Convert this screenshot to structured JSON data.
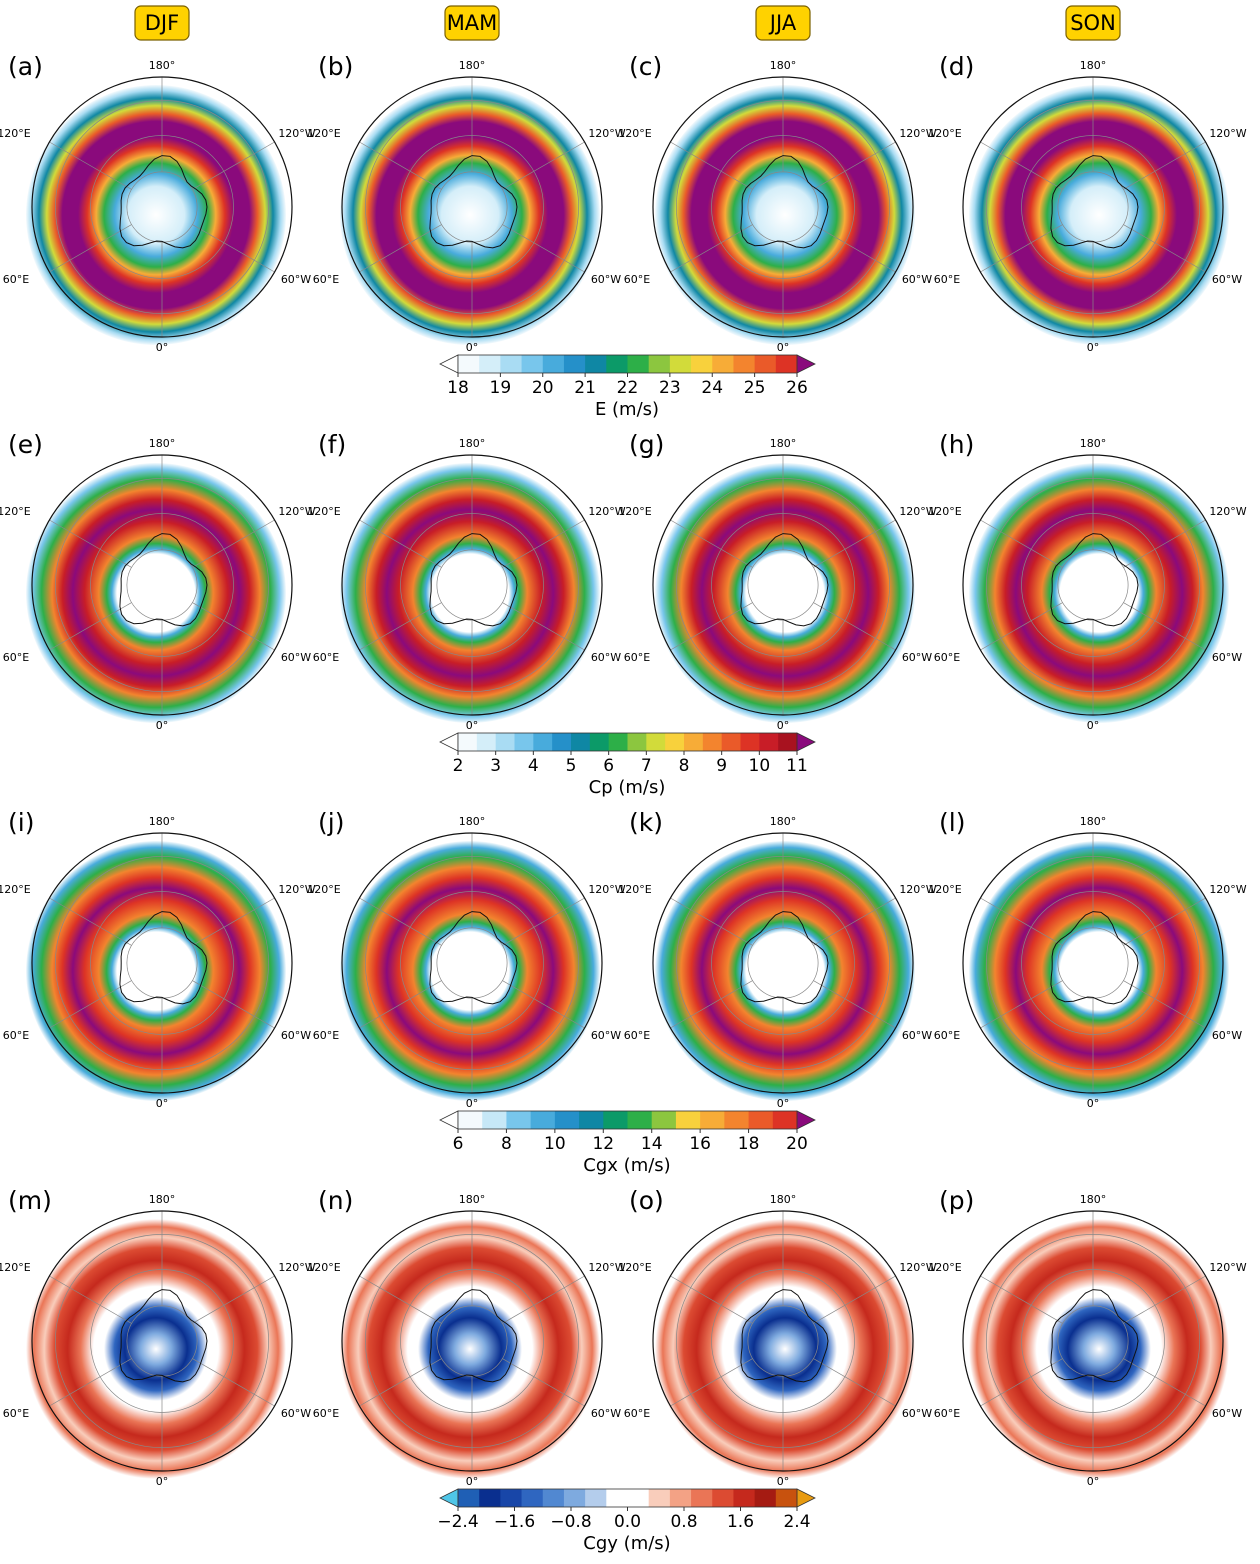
{
  "seasons": [
    "DJF",
    "MAM",
    "JJA",
    "SON"
  ],
  "panel_labels": [
    "(a)",
    "(b)",
    "(c)",
    "(d)",
    "(e)",
    "(f)",
    "(g)",
    "(h)",
    "(i)",
    "(j)",
    "(k)",
    "(l)",
    "(m)",
    "(n)",
    "(o)",
    "(p)"
  ],
  "longitude_labels": {
    "top": "180°",
    "upper_left": "120°E",
    "upper_right": "120°W",
    "lower_left": "60°E",
    "lower_right": "60°W",
    "bottom": "0°"
  },
  "rows": [
    {
      "colorbar": {
        "label": "E (m/s)",
        "lim": [
          18,
          26
        ],
        "ticks": [
          18,
          19,
          20,
          21,
          22,
          23,
          24,
          25,
          26
        ],
        "under": "#ffffff",
        "over": "#8a0a7c",
        "colors": [
          "#f4fafd",
          "#d4eef9",
          "#a9dcf3",
          "#78c6ec",
          "#48abdc",
          "#2590c9",
          "#0f87a4",
          "#0c9a68",
          "#2daf48",
          "#8cc63f",
          "#d2db3a",
          "#f8d13c",
          "#f7ac37",
          "#f3842e",
          "#ea5a29",
          "#dd3325"
        ]
      }
    },
    {
      "colorbar": {
        "label": "Cp (m/s)",
        "lim": [
          2,
          11
        ],
        "ticks": [
          2,
          3,
          4,
          5,
          6,
          7,
          8,
          9,
          10,
          11
        ],
        "under": "#ffffff",
        "over": "#8a0a7c",
        "colors": [
          "#f4fafd",
          "#d4eef9",
          "#a9dcf3",
          "#78c6ec",
          "#48abdc",
          "#2590c9",
          "#0f87a4",
          "#0c9a68",
          "#2daf48",
          "#8cc63f",
          "#d2db3a",
          "#f8d13c",
          "#f7ac37",
          "#f3842e",
          "#ea5a29",
          "#dd3325",
          "#c81d27",
          "#a8121f"
        ]
      }
    },
    {
      "colorbar": {
        "label": "Cgx (m/s)",
        "lim": [
          6,
          20
        ],
        "ticks": [
          6,
          8,
          10,
          12,
          14,
          16,
          18,
          20
        ],
        "under": "#ffffff",
        "over": "#8a0a7c",
        "colors": [
          "#f4fafd",
          "#c6e8f7",
          "#78c6ec",
          "#48abdc",
          "#2590c9",
          "#0f87a4",
          "#0c9a68",
          "#2daf48",
          "#8cc63f",
          "#f8d13c",
          "#f7ac37",
          "#f3842e",
          "#ea5a29",
          "#dd3325"
        ]
      }
    },
    {
      "colorbar": {
        "label": "Cgy (m/s)",
        "lim": [
          -2.4,
          2.4
        ],
        "ticks": [
          {
            "value": -2.4,
            "label": "−2.4"
          },
          {
            "value": -1.6,
            "label": "−1.6"
          },
          {
            "value": -0.8,
            "label": "−0.8"
          },
          {
            "value": 0,
            "label": "0.0"
          },
          0.8,
          1.6,
          2.4
        ],
        "under": "#4fc6e8",
        "over": "#e89b12",
        "colors": [
          "#1f5fb5",
          "#0a2f8f",
          "#1846a8",
          "#2f66c0",
          "#5188d1",
          "#7eaadf",
          "#b4cdec",
          "#ffffff",
          "#ffffff",
          "#f9cdbb",
          "#f3a285",
          "#ea7556",
          "#dc4b32",
          "#c5291d",
          "#a51b12",
          "#c8520e"
        ]
      }
    }
  ]
}
